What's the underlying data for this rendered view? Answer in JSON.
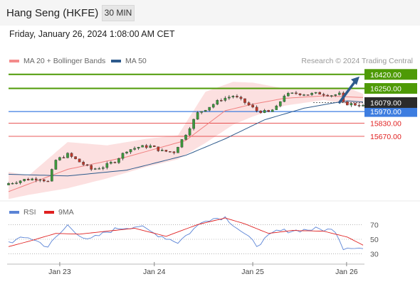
{
  "header": {
    "title": "Hang Seng (HKFE)",
    "interval": "30 MIN"
  },
  "timestamp": "Friday, January 26, 2024 1:08:00 AM CET",
  "legend": [
    {
      "label": "MA 20 + Bollinger Bands",
      "color": "#f48b8b"
    },
    {
      "label": "MA 50",
      "color": "#2d5a8c"
    }
  ],
  "credit": "Research © 2024 Trading Central",
  "rsi_legend": [
    {
      "label": "RSI",
      "color": "#5b84d6"
    },
    {
      "label": "9MA",
      "color": "#e02020"
    }
  ],
  "chart_data": [
    {
      "type": "candlestick",
      "title": "Hang Seng (HKFE)",
      "interval": "30 MIN",
      "x_ticks": [
        "Jan 23",
        "Jan 24",
        "Jan 25",
        "Jan 26"
      ],
      "ylim": [
        14930,
        16530
      ],
      "current_price": {
        "value": 16079.0,
        "label": "16079.00",
        "color": "#2b2b2b"
      },
      "levels": [
        {
          "value": 16420.0,
          "label": "16420.00",
          "type": "resistance",
          "color": "#4e9a06"
        },
        {
          "value": 16250.0,
          "label": "16250.00",
          "type": "resistance",
          "color": "#4e9a06"
        },
        {
          "value": 15970.0,
          "label": "15970.00",
          "type": "pivot",
          "color": "#3d7de0"
        },
        {
          "value": 15830.0,
          "label": "15830.00",
          "type": "support",
          "color": "#e02020"
        },
        {
          "value": 15670.0,
          "label": "15670.00",
          "type": "support",
          "color": "#e02020"
        }
      ],
      "forecast_arrow": {
        "from": 16079,
        "to": 16420,
        "color": "#2d5a8c"
      },
      "close_anchors": [
        [
          0,
          15100
        ],
        [
          4,
          15145
        ],
        [
          8,
          15160
        ],
        [
          10,
          15120
        ],
        [
          12,
          15380
        ],
        [
          15,
          15450
        ],
        [
          18,
          15360
        ],
        [
          21,
          15270
        ],
        [
          24,
          15300
        ],
        [
          27,
          15370
        ],
        [
          30,
          15500
        ],
        [
          33,
          15540
        ],
        [
          36,
          15550
        ],
        [
          39,
          15490
        ],
        [
          42,
          15480
        ],
        [
          45,
          15700
        ],
        [
          48,
          15950
        ],
        [
          51,
          16030
        ],
        [
          54,
          16120
        ],
        [
          57,
          16160
        ],
        [
          60,
          16080
        ],
        [
          63,
          15980
        ],
        [
          66,
          15960
        ],
        [
          68,
          16020
        ],
        [
          70,
          16170
        ],
        [
          73,
          16190
        ],
        [
          76,
          16180
        ],
        [
          79,
          16190
        ],
        [
          82,
          16170
        ],
        [
          84,
          16180
        ],
        [
          85,
          16070
        ],
        [
          87,
          16060
        ],
        [
          89,
          16050
        ],
        [
          90,
          16035
        ]
      ],
      "ma20": [
        [
          0,
          15000
        ],
        [
          15,
          15270
        ],
        [
          30,
          15420
        ],
        [
          45,
          15620
        ],
        [
          55,
          15980
        ],
        [
          62,
          16060
        ],
        [
          70,
          16130
        ],
        [
          80,
          16160
        ],
        [
          90,
          16140
        ]
      ],
      "ma50": [
        [
          0,
          15210
        ],
        [
          15,
          15190
        ],
        [
          30,
          15260
        ],
        [
          45,
          15440
        ],
        [
          55,
          15640
        ],
        [
          65,
          15870
        ],
        [
          75,
          16010
        ],
        [
          82,
          16070
        ],
        [
          86,
          16100
        ],
        [
          90,
          16085
        ]
      ],
      "bb_upper": [
        [
          0,
          15240
        ],
        [
          5,
          15190
        ],
        [
          15,
          15600
        ],
        [
          25,
          15560
        ],
        [
          35,
          15640
        ],
        [
          43,
          15680
        ],
        [
          50,
          16210
        ],
        [
          57,
          16330
        ],
        [
          62,
          16320
        ],
        [
          70,
          16250
        ],
        [
          80,
          16250
        ],
        [
          86,
          16260
        ],
        [
          90,
          16185
        ]
      ],
      "bb_lower": [
        [
          0,
          14910
        ],
        [
          5,
          14960
        ],
        [
          15,
          15040
        ],
        [
          25,
          15160
        ],
        [
          35,
          15300
        ],
        [
          43,
          15390
        ],
        [
          50,
          15590
        ],
        [
          57,
          15810
        ],
        [
          62,
          15910
        ],
        [
          70,
          16040
        ],
        [
          80,
          16110
        ],
        [
          86,
          16060
        ],
        [
          90,
          16060
        ]
      ]
    },
    {
      "type": "line",
      "title": "RSI",
      "ylim": [
        20,
        80
      ],
      "y_ticks": [
        30,
        50,
        70
      ],
      "series": [
        {
          "name": "RSI",
          "color": "#5b84d6",
          "values": [
            [
              0,
              46
            ],
            [
              5,
              53
            ],
            [
              10,
              40
            ],
            [
              15,
              69
            ],
            [
              20,
              48
            ],
            [
              25,
              60
            ],
            [
              28,
              65
            ],
            [
              33,
              68
            ],
            [
              37,
              58
            ],
            [
              43,
              46
            ],
            [
              50,
              77
            ],
            [
              55,
              80
            ],
            [
              58,
              66
            ],
            [
              63,
              42
            ],
            [
              68,
              61
            ],
            [
              73,
              62
            ],
            [
              78,
              64
            ],
            [
              83,
              62
            ],
            [
              85,
              38
            ],
            [
              87,
              40
            ],
            [
              90,
              37
            ]
          ]
        },
        {
          "name": "9MA",
          "color": "#e02020",
          "values": [
            [
              0,
              40
            ],
            [
              5,
              47
            ],
            [
              12,
              58
            ],
            [
              18,
              57
            ],
            [
              25,
              61
            ],
            [
              32,
              65
            ],
            [
              40,
              54
            ],
            [
              48,
              70
            ],
            [
              55,
              79
            ],
            [
              60,
              71
            ],
            [
              66,
              58
            ],
            [
              72,
              62
            ],
            [
              80,
              61
            ],
            [
              86,
              53
            ],
            [
              90,
              42
            ]
          ]
        }
      ]
    }
  ]
}
